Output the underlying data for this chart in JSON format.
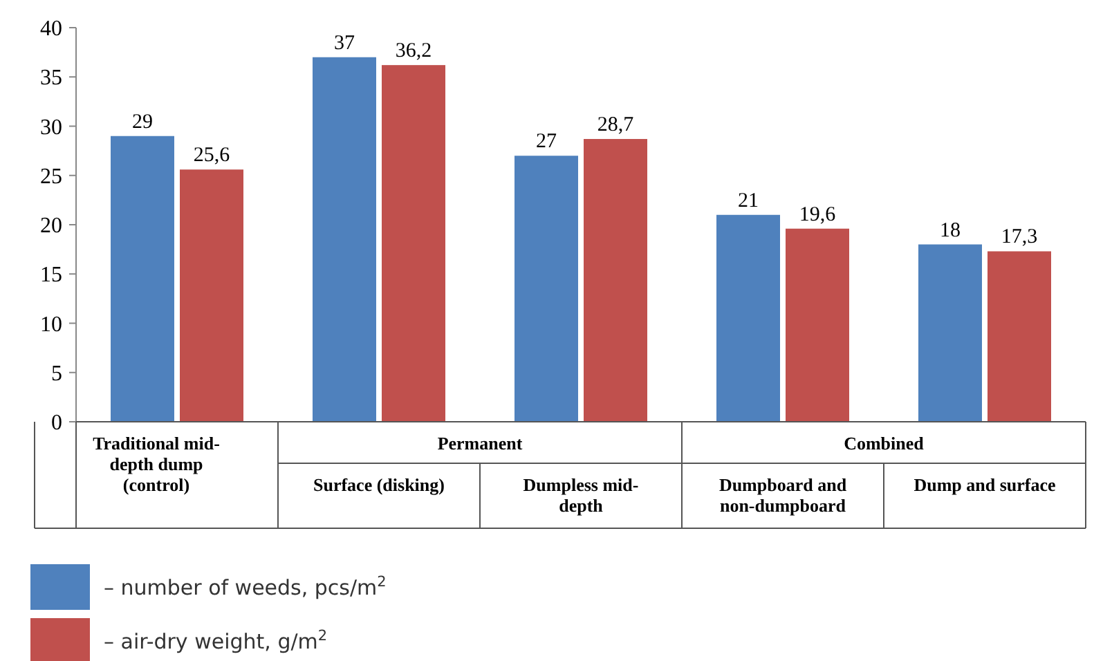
{
  "chart_data": {
    "type": "bar",
    "categories": [
      "Traditional mid-depth dump (control)",
      "Surface (disking)",
      "Dumpless mid-depth",
      "Dumpboard and non-dumpboard",
      "Dump and surface"
    ],
    "series": [
      {
        "name": "– number of weeds, pcs/m$^{2}$",
        "color": "#4f81bd",
        "values": [
          29,
          37,
          27,
          21,
          18
        ],
        "value_labels": [
          "29",
          "37",
          "27",
          "21",
          "18"
        ]
      },
      {
        "name": "– air-dry weight, g/m$^{2}$",
        "color": "#c0504d",
        "values": [
          25.6,
          36.2,
          28.7,
          19.6,
          17.3
        ],
        "value_labels": [
          "25,6",
          "36,2",
          "28,7",
          "19,6",
          "17,3"
        ]
      }
    ],
    "ylim": [
      0,
      40
    ],
    "yticks": [
      0,
      5,
      10,
      15,
      20,
      25,
      30,
      35,
      40
    ],
    "grid": false,
    "legend": "bottom left",
    "annotations": [
      "Permanent",
      "Combined"
    ]
  }
}
